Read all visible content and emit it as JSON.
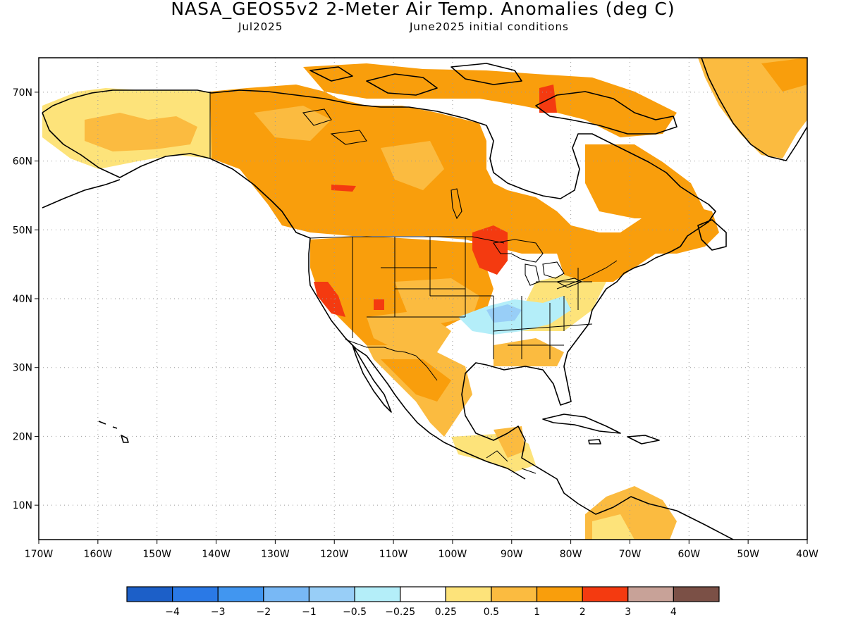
{
  "title": "NASA_GEOS5v2 2-Meter Air Temp. Anomalies (deg C)",
  "subtitle_left": "Jul2025",
  "subtitle_right": "June2025 initial conditions",
  "map": {
    "lon_range": [
      -170,
      -40
    ],
    "lat_range": [
      5,
      75
    ],
    "lat_ticks": [
      "70N",
      "60N",
      "50N",
      "40N",
      "30N",
      "20N",
      "10N"
    ],
    "lon_ticks": [
      "170W",
      "160W",
      "150W",
      "140W",
      "130W",
      "120W",
      "110W",
      "100W",
      "90W",
      "80W",
      "70W",
      "60W",
      "50W",
      "40W"
    ],
    "grid": "dotted"
  },
  "colorbar": {
    "labels": [
      "−4",
      "−3",
      "−2",
      "−1",
      "−0.5",
      "−0.25",
      "0.25",
      "0.5",
      "1",
      "2",
      "3",
      "4"
    ],
    "colors": [
      "#1c5fc8",
      "#2a79e6",
      "#4196f0",
      "#78b8f5",
      "#98cef7",
      "#b4eef9",
      "#ffffff",
      "#fde37a",
      "#fbbb40",
      "#f99e0c",
      "#f43a10",
      "#c8a298",
      "#7b5046"
    ]
  },
  "colors": {
    "warm_light": "#fde37a",
    "warm_mid": "#fbbb40",
    "warm": "#f99e0c",
    "hot": "#f43a10",
    "cool_light": "#b4eef9",
    "cool": "#98cef7"
  }
}
